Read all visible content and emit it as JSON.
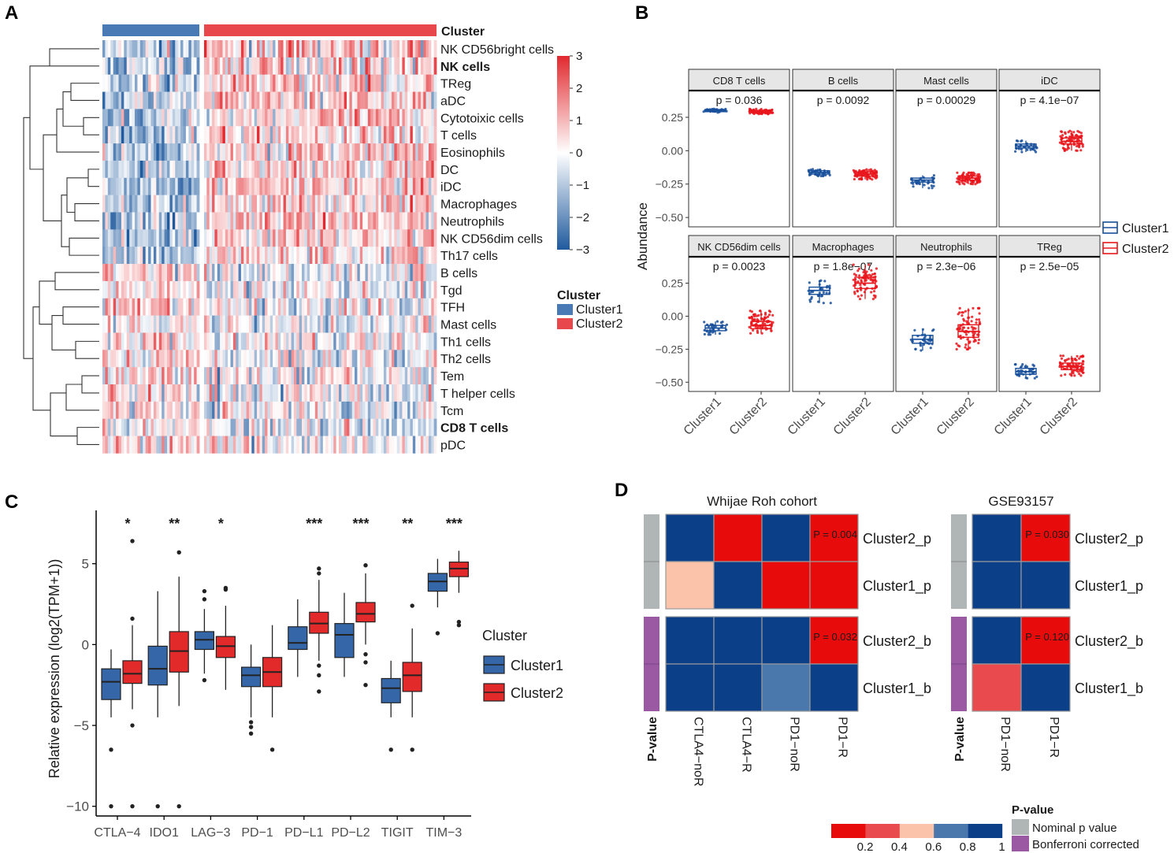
{
  "panels": {
    "A": {
      "label": "A"
    },
    "B": {
      "label": "B"
    },
    "C": {
      "label": "C"
    },
    "D": {
      "label": "D"
    }
  },
  "colors": {
    "cluster1_heat": "#4a7ab5",
    "cluster2_heat": "#e8474b",
    "cluster1_box": "#174f9b",
    "cluster2_box": "#e8161c",
    "c_cluster1_fill": "#3466a8",
    "c_cluster2_fill": "#e32a2a",
    "heat_low": "#1f5a9e",
    "heat_mid": "#ffffff",
    "heat_high": "#e1292e",
    "sig_red": "#e80b0b",
    "sig_blue": "#0b3f87",
    "bar_grey": "#b0b6b6",
    "bar_purple": "#9b59a3"
  },
  "chart_data": [
    {
      "panel": "A",
      "type": "heatmap",
      "annotation_title": "Cluster",
      "rows": [
        "NK CD56bright cells",
        "NK cells",
        "TReg",
        "aDC",
        "Cytotoixic cells",
        "T cells",
        "Eosinophils",
        "DC",
        "iDC",
        "Macrophages",
        "Neutrophils",
        "NK CD56dim cells",
        "Th17 cells",
        "B cells",
        "Tgd",
        "TFH",
        "Mast cells",
        "Th1 cells",
        "Th2 cells",
        "Tem",
        "T helper cells",
        "Tcm",
        "CD8 T cells",
        "pDC"
      ],
      "bold_rows": [
        "NK cells",
        "CD8 T cells"
      ],
      "columns": {
        "cluster1_count": 36,
        "cluster2_count": 88
      },
      "scale": {
        "min": -3,
        "max": 3,
        "ticks": [
          3,
          2,
          1,
          0,
          -1,
          -2,
          -3
        ]
      },
      "legend": {
        "title": "Cluster",
        "items": [
          "Cluster1",
          "Cluster2"
        ]
      }
    },
    {
      "panel": "B",
      "type": "box",
      "ylabel": "Abundance",
      "ylim": [
        -0.57,
        0.45
      ],
      "yticks": [
        0.25,
        0.0,
        -0.25,
        -0.5
      ],
      "ytick_labels": [
        "0.25",
        "0.00",
        "-0.25",
        "-0.50"
      ],
      "xcategories": [
        "Cluster1",
        "Cluster2"
      ],
      "legend": [
        "Cluster1",
        "Cluster2"
      ],
      "facets": [
        {
          "title": "CD8 T cells",
          "p": "p = 0.036",
          "c1": {
            "q1": 0.292,
            "med": 0.3,
            "q3": 0.308,
            "lo": 0.285,
            "hi": 0.315
          },
          "c2": {
            "q1": 0.285,
            "med": 0.293,
            "q3": 0.302,
            "lo": 0.275,
            "hi": 0.312
          }
        },
        {
          "title": "B cells",
          "p": "p = 0.0092",
          "c1": {
            "q1": -0.175,
            "med": -0.163,
            "q3": -0.15,
            "lo": -0.19,
            "hi": -0.135
          },
          "c2": {
            "q1": -0.19,
            "med": -0.175,
            "q3": -0.16,
            "lo": -0.215,
            "hi": -0.14
          }
        },
        {
          "title": "Mast cells",
          "p": "p = 0.00029",
          "c1": {
            "q1": -0.235,
            "med": -0.22,
            "q3": -0.205,
            "lo": -0.28,
            "hi": -0.185
          },
          "c2": {
            "q1": -0.22,
            "med": -0.205,
            "q3": -0.19,
            "lo": -0.25,
            "hi": -0.165
          }
        },
        {
          "title": "iDC",
          "p": "p = 4.1e−07",
          "c1": {
            "q1": 0.02,
            "med": 0.035,
            "q3": 0.05,
            "lo": -0.01,
            "hi": 0.075
          },
          "c2": {
            "q1": 0.05,
            "med": 0.07,
            "q3": 0.095,
            "lo": 0.0,
            "hi": 0.15
          }
        },
        {
          "title": "NK CD56dim cells",
          "p": "p = 0.0023",
          "c1": {
            "q1": -0.11,
            "med": -0.09,
            "q3": -0.07,
            "lo": -0.14,
            "hi": -0.04
          },
          "c2": {
            "q1": -0.095,
            "med": -0.07,
            "q3": -0.04,
            "lo": -0.13,
            "hi": 0.04
          }
        },
        {
          "title": "Macrophages",
          "p": "p = 1.8e−07",
          "c1": {
            "q1": 0.165,
            "med": 0.195,
            "q3": 0.22,
            "lo": 0.1,
            "hi": 0.27
          },
          "c2": {
            "q1": 0.21,
            "med": 0.25,
            "q3": 0.295,
            "lo": 0.13,
            "hi": 0.39
          }
        },
        {
          "title": "Neutrophils",
          "p": "p = 2.3e−06",
          "c1": {
            "q1": -0.205,
            "med": -0.175,
            "q3": -0.145,
            "lo": -0.26,
            "hi": -0.1
          },
          "c2": {
            "q1": -0.16,
            "med": -0.115,
            "q3": -0.065,
            "lo": -0.25,
            "hi": 0.06
          }
        },
        {
          "title": "TReg",
          "p": "p = 2.5e−05",
          "c1": {
            "q1": -0.44,
            "med": -0.42,
            "q3": -0.395,
            "lo": -0.47,
            "hi": -0.365
          },
          "c2": {
            "q1": -0.405,
            "med": -0.38,
            "q3": -0.355,
            "lo": -0.45,
            "hi": -0.3
          }
        }
      ]
    },
    {
      "panel": "C",
      "type": "box",
      "ylabel": "Relative expression (log2(TPM+1))",
      "ylim": [
        -10.6,
        8.2
      ],
      "yticks": [
        5,
        0,
        -5,
        -10
      ],
      "ytick_labels": [
        "5",
        "0",
        "-5",
        "-10"
      ],
      "categories": [
        "CTLA−4",
        "IDO1",
        "LAG−3",
        "PD−1",
        "PD−L1",
        "PD−L2",
        "TIGIT",
        "TIM−3"
      ],
      "significance": [
        "*",
        "**",
        "*",
        "",
        "***",
        "***",
        "**",
        "***"
      ],
      "legend": {
        "title": "Cluster",
        "items": [
          "Cluster1",
          "Cluster2"
        ]
      },
      "series": [
        {
          "name": "Cluster1",
          "boxes": [
            {
              "lo": -4.5,
              "q1": -3.4,
              "med": -2.3,
              "q3": -1.5,
              "hi": -0.3,
              "out": [
                -6.5,
                -10
              ]
            },
            {
              "lo": -4.5,
              "q1": -2.5,
              "med": -1.5,
              "q3": -0.1,
              "hi": 3.3,
              "out": [
                -10
              ]
            },
            {
              "lo": -1.8,
              "q1": -0.3,
              "med": 0.3,
              "q3": 0.8,
              "hi": 2.2,
              "out": [
                3.3,
                2.8,
                -2.2
              ]
            },
            {
              "lo": -4.5,
              "q1": -2.6,
              "med": -1.9,
              "q3": -1.4,
              "hi": 0.0,
              "out": [
                -4.8,
                -5.1,
                -5.5
              ]
            },
            {
              "lo": -2.0,
              "q1": -0.3,
              "med": 0.1,
              "q3": 1.1,
              "hi": 2.8,
              "out": []
            },
            {
              "lo": -2.0,
              "q1": -0.8,
              "med": 0.6,
              "q3": 1.3,
              "hi": 3.2,
              "out": []
            },
            {
              "lo": -4.5,
              "q1": -3.6,
              "med": -2.7,
              "q3": -2.1,
              "hi": -1.0,
              "out": [
                -6.5
              ]
            },
            {
              "lo": 2.3,
              "q1": 3.3,
              "med": 3.9,
              "q3": 4.4,
              "hi": 5.3,
              "out": [
                0.7
              ]
            }
          ]
        },
        {
          "name": "Cluster2",
          "boxes": [
            {
              "lo": -4.0,
              "q1": -2.4,
              "med": -1.8,
              "q3": -1.0,
              "hi": 1.2,
              "out": [
                6.4,
                1.6,
                -5.0,
                -10
              ]
            },
            {
              "lo": -3.8,
              "q1": -1.7,
              "med": -0.4,
              "q3": 0.8,
              "hi": 4.2,
              "out": [
                5.7,
                -10
              ]
            },
            {
              "lo": -2.8,
              "q1": -0.8,
              "med": -0.1,
              "q3": 0.5,
              "hi": 2.4,
              "out": [
                3.5,
                3.4
              ]
            },
            {
              "lo": -4.5,
              "q1": -2.6,
              "med": -1.7,
              "q3": -0.8,
              "hi": 1.2,
              "out": [
                -6.5
              ]
            },
            {
              "lo": -1.0,
              "q1": 0.7,
              "med": 1.3,
              "q3": 2.0,
              "hi": 4.0,
              "out": [
                4.7,
                4.4,
                -1.3,
                -1.9,
                -2.9
              ]
            },
            {
              "lo": 0.0,
              "q1": 1.4,
              "med": 1.9,
              "q3": 2.6,
              "hi": 4.4,
              "out": [
                4.9,
                -0.6,
                -1.1,
                -2.5
              ]
            },
            {
              "lo": -4.5,
              "q1": -2.9,
              "med": -1.9,
              "q3": -1.1,
              "hi": 1.0,
              "out": [
                2.4,
                -6.5
              ]
            },
            {
              "lo": 3.2,
              "q1": 4.2,
              "med": 4.7,
              "q3": 5.1,
              "hi": 5.8,
              "out": [
                1.4,
                1.2
              ]
            }
          ]
        }
      ]
    },
    {
      "panel": "D",
      "type": "heatmap",
      "scale_ticks": [
        "0.2",
        "0.4",
        "0.6",
        "0.8",
        "1"
      ],
      "legend_title": "P-value",
      "legend_items": [
        "Nominal p value",
        "Bonferroni corrected"
      ],
      "annotation_label": "P-value",
      "rows": [
        "Cluster2_p",
        "Cluster1_p",
        "Cluster2_b",
        "Cluster1_b"
      ],
      "cohorts": [
        {
          "title": "Whijae Roh cohort",
          "columns": [
            "CTLA4−noR",
            "CTLA4−R",
            "PD1−noR",
            "PD1−R"
          ],
          "values": [
            [
              1,
              0.004,
              1,
              0.004
            ],
            [
              0.5,
              1,
              0.004,
              0.004
            ],
            [
              1,
              1,
              1,
              0.032
            ],
            [
              1,
              1,
              0.75,
              1
            ]
          ],
          "cell_labels": [
            [
              "",
              "",
              "",
              "P = 0.004"
            ],
            [
              "",
              "",
              "",
              ""
            ],
            [
              "",
              "",
              "",
              "P = 0.032"
            ],
            [
              "",
              "",
              "",
              ""
            ]
          ]
        },
        {
          "title": "GSE93157",
          "columns": [
            "PD1−noR",
            "PD1−R"
          ],
          "values": [
            [
              1,
              0.03
            ],
            [
              1,
              1
            ],
            [
              1,
              0.12
            ],
            [
              0.3,
              1
            ]
          ],
          "cell_labels": [
            [
              "",
              "P = 0.030"
            ],
            [
              "",
              ""
            ],
            [
              "",
              "P = 0.120"
            ],
            [
              "",
              ""
            ]
          ]
        }
      ]
    }
  ]
}
